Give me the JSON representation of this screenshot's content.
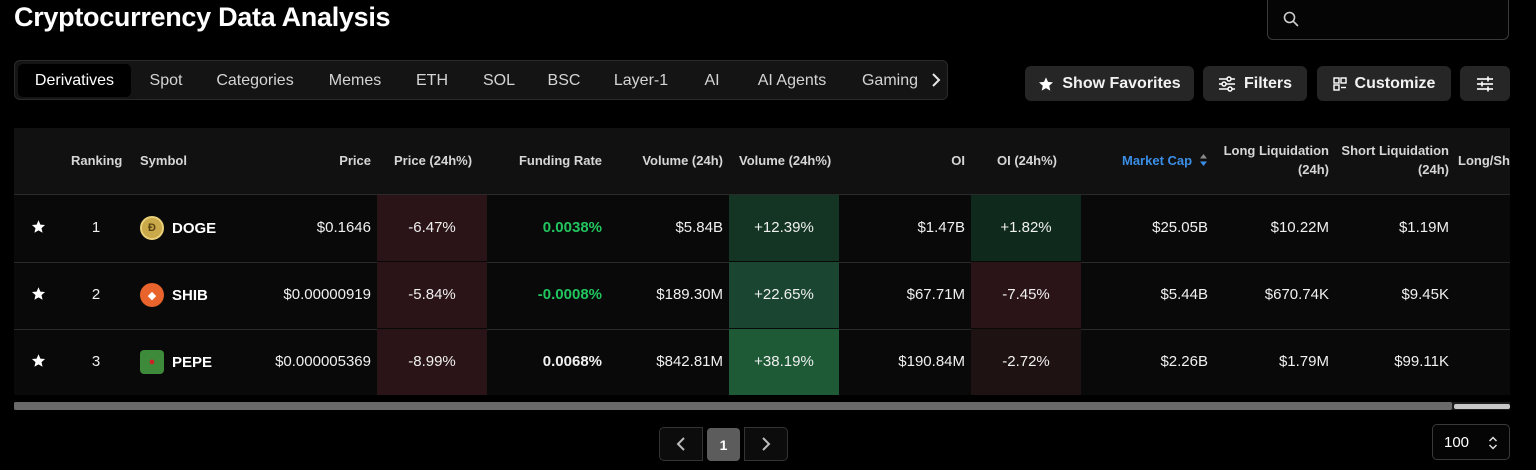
{
  "title": "Cryptocurrency Data Analysis",
  "search": {
    "placeholder": ""
  },
  "tabs": [
    "Derivatives",
    "Spot",
    "Categories",
    "Memes",
    "ETH",
    "SOL",
    "BSC",
    "Layer-1",
    "AI",
    "AI Agents",
    "Gaming"
  ],
  "active_tab": "Derivatives",
  "buttons": {
    "favorites": "Show Favorites",
    "filters": "Filters",
    "customize": "Customize"
  },
  "columns": {
    "ranking": "Ranking",
    "symbol": "Symbol",
    "price": "Price",
    "price_change": "Price (24h%)",
    "funding_rate": "Funding Rate",
    "volume": "Volume (24h)",
    "volume_change": "Volume (24h%)",
    "oi": "OI",
    "oi_change": "OI (24h%)",
    "market_cap": "Market Cap",
    "long_liq_1": "Long Liquidation",
    "long_liq_2": "(24h)",
    "short_liq_1": "Short Liquidation",
    "short_liq_2": "(24h)",
    "long_short": "Long/Sh"
  },
  "sort": {
    "column": "market_cap",
    "color": "#3a8ee6"
  },
  "rows": [
    {
      "rank": "1",
      "symbol": "DOGE",
      "icon": "doge-coin-icon",
      "price": "$0.1646",
      "price_change": "-6.47%",
      "funding_rate": "0.0038%",
      "volume": "$5.84B",
      "volume_change": "+12.39%",
      "oi": "$1.47B",
      "oi_change": "+1.82%",
      "market_cap": "$25.05B",
      "long_liq": "$10.22M",
      "short_liq": "$1.19M"
    },
    {
      "rank": "2",
      "symbol": "SHIB",
      "icon": "shib-coin-icon",
      "price": "$0.00000919",
      "price_change": "-5.84%",
      "funding_rate": "-0.0008%",
      "volume": "$189.30M",
      "volume_change": "+22.65%",
      "oi": "$67.71M",
      "oi_change": "-7.45%",
      "market_cap": "$5.44B",
      "long_liq": "$670.74K",
      "short_liq": "$9.45K"
    },
    {
      "rank": "3",
      "symbol": "PEPE",
      "icon": "pepe-coin-icon",
      "price": "$0.000005369",
      "price_change": "-8.99%",
      "funding_rate": "0.0068%",
      "volume": "$842.81M",
      "volume_change": "+38.19%",
      "oi": "$190.84M",
      "oi_change": "-2.72%",
      "market_cap": "$2.26B",
      "long_liq": "$1.79M",
      "short_liq": "$99.11K"
    }
  ],
  "colors": {
    "negative_bg": "#2a1417",
    "positive_bg_light": "#143524",
    "positive_bg_strong": "#1f5a37",
    "positive_text": "#22c55e"
  },
  "pagination": {
    "current_page": "1",
    "page_size": "100"
  }
}
